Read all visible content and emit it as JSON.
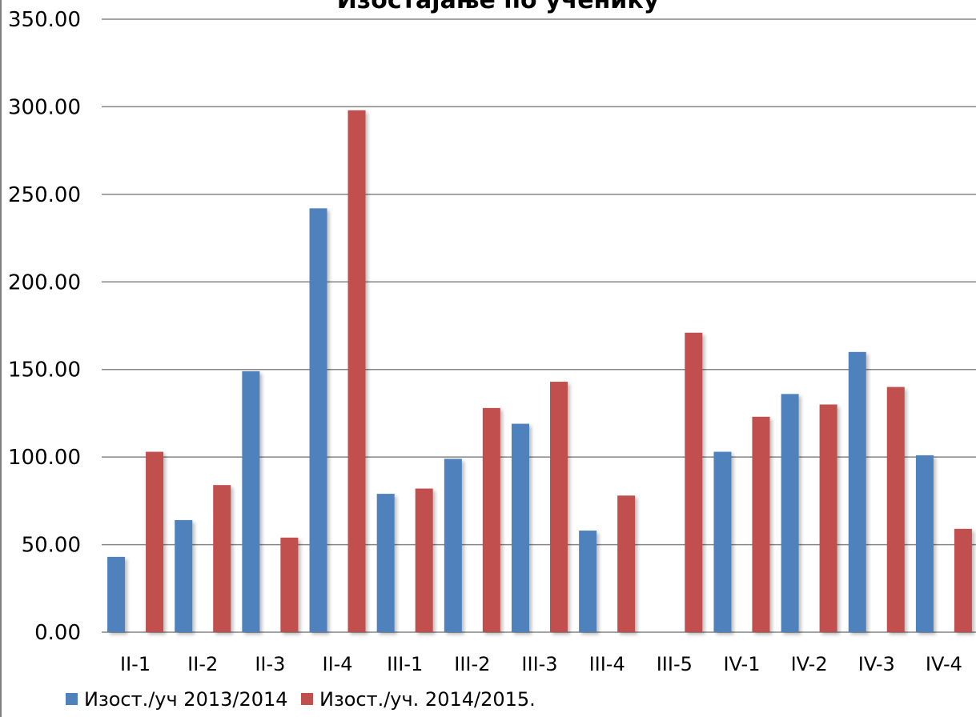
{
  "chart_data": {
    "type": "bar",
    "title": "Изостајање по ученику",
    "xlabel": "",
    "ylabel": "",
    "ylim": [
      0,
      350
    ],
    "yticks": [
      "0.00",
      "50.00",
      "100.00",
      "150.00",
      "200.00",
      "250.00",
      "300.00",
      "350.00"
    ],
    "grid": true,
    "legend_position": "bottom-left",
    "categories": [
      "II-1",
      "II-2",
      "II-3",
      "II-4",
      "III-1",
      "III-2",
      "III-3",
      "III-4",
      "III-5",
      "IV-1",
      "IV-2",
      "IV-3",
      "IV-4"
    ],
    "series": [
      {
        "name": "Изост./уч 2013/2014",
        "color": "#4f81bd",
        "values": [
          43,
          64,
          149,
          242,
          79,
          99,
          119,
          58,
          null,
          103,
          136,
          160,
          101
        ]
      },
      {
        "name": "Изост./уч. 2014/2015.",
        "color": "#c0504d",
        "values": [
          103,
          84,
          54,
          298,
          82,
          128,
          143,
          78,
          171,
          123,
          130,
          140,
          59
        ]
      }
    ]
  }
}
